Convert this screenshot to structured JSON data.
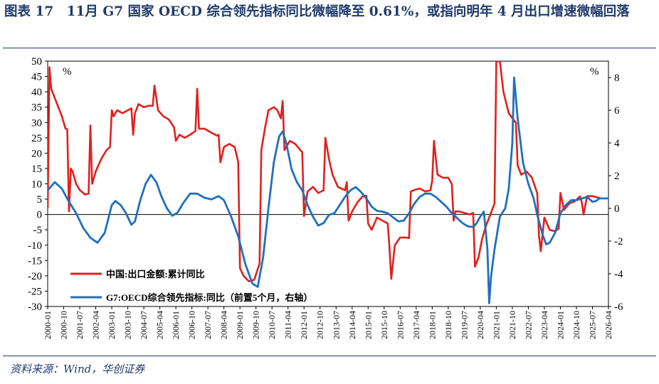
{
  "title": "图表 17　11月 G7 国家 OECD 综合领先指标同比微幅降至 0.61%，或指向明年 4 月出口增速微幅回落",
  "source": "资料来源：Wind，华创证券",
  "colors": {
    "series_china": "#e0201c",
    "series_g7": "#1f6fbf",
    "title": "#1f3b6b",
    "axis": "#000000"
  },
  "chart_data": {
    "type": "line",
    "title": "",
    "xlabel": "",
    "ylabel_left": "%",
    "ylabel_right": "%",
    "ylim_left": [
      -30,
      50
    ],
    "ylim_right": [
      -6,
      9
    ],
    "xlim": [
      "2000-01",
      "2026-04"
    ],
    "yticks_left": [
      "50",
      "45",
      "40",
      "35",
      "30",
      "25",
      "20",
      "15",
      "10",
      "5",
      "0",
      "-5",
      "-10",
      "-15",
      "-20",
      "-25",
      "-30"
    ],
    "yticks_right": [
      "8",
      "6",
      "4",
      "2",
      "0",
      "-2",
      "-4",
      "-6"
    ],
    "xticks": [
      "2000-01",
      "2000-10",
      "2001-07",
      "2002-04",
      "2003-01",
      "2003-10",
      "2004-07",
      "2005-04",
      "2006-01",
      "2006-10",
      "2007-07",
      "2008-04",
      "2009-01",
      "2009-10",
      "2010-07",
      "2011-04",
      "2012-01",
      "2012-10",
      "2013-07",
      "2014-04",
      "2015-01",
      "2015-10",
      "2016-07",
      "2017-04",
      "2018-01",
      "2018-10",
      "2019-07",
      "2020-04",
      "2021-01",
      "2021-10",
      "2022-07",
      "2023-04",
      "2024-01",
      "2024-10",
      "2025-07",
      "2026-04"
    ],
    "legend_position": "bottom-left",
    "series": [
      {
        "name": "中国:出口金额:累计同比",
        "axis": "left",
        "color": "#e0201c",
        "points": [
          [
            "2000-01",
            2
          ],
          [
            "2000-02",
            48
          ],
          [
            "2000-03",
            41
          ],
          [
            "2000-05",
            38
          ],
          [
            "2000-07",
            35
          ],
          [
            "2000-09",
            32
          ],
          [
            "2000-11",
            28
          ],
          [
            "2000-12",
            27.8
          ],
          [
            "2001-01",
            1
          ],
          [
            "2001-02",
            15
          ],
          [
            "2001-03",
            14
          ],
          [
            "2001-05",
            10
          ],
          [
            "2001-07",
            8
          ],
          [
            "2001-10",
            6.5
          ],
          [
            "2001-12",
            6.8
          ],
          [
            "2002-01",
            29
          ],
          [
            "2002-02",
            10
          ],
          [
            "2002-04",
            14
          ],
          [
            "2002-07",
            18
          ],
          [
            "2002-10",
            21
          ],
          [
            "2002-12",
            22
          ],
          [
            "2003-01",
            34
          ],
          [
            "2003-02",
            32
          ],
          [
            "2003-04",
            34
          ],
          [
            "2003-07",
            33
          ],
          [
            "2003-10",
            34
          ],
          [
            "2003-12",
            34.6
          ],
          [
            "2004-01",
            26
          ],
          [
            "2004-02",
            33
          ],
          [
            "2004-04",
            36
          ],
          [
            "2004-07",
            35
          ],
          [
            "2004-10",
            35.5
          ],
          [
            "2004-12",
            35.4
          ],
          [
            "2005-01",
            42
          ],
          [
            "2005-03",
            34
          ],
          [
            "2005-06",
            32
          ],
          [
            "2005-09",
            31
          ],
          [
            "2005-12",
            28.4
          ],
          [
            "2006-01",
            24
          ],
          [
            "2006-03",
            26
          ],
          [
            "2006-06",
            25
          ],
          [
            "2006-09",
            26
          ],
          [
            "2006-12",
            27.2
          ],
          [
            "2007-01",
            41
          ],
          [
            "2007-02",
            28
          ],
          [
            "2007-05",
            28
          ],
          [
            "2007-08",
            27
          ],
          [
            "2007-12",
            25.7
          ],
          [
            "2008-01",
            26
          ],
          [
            "2008-02",
            17
          ],
          [
            "2008-04",
            22
          ],
          [
            "2008-07",
            23
          ],
          [
            "2008-10",
            22
          ],
          [
            "2008-12",
            17.2
          ],
          [
            "2009-01",
            -17.5
          ],
          [
            "2009-03",
            -20
          ],
          [
            "2009-06",
            -21.8
          ],
          [
            "2009-09",
            -21.3
          ],
          [
            "2009-12",
            -16
          ],
          [
            "2010-01",
            21
          ],
          [
            "2010-03",
            28
          ],
          [
            "2010-05",
            34
          ],
          [
            "2010-08",
            35
          ],
          [
            "2010-10",
            34
          ],
          [
            "2010-12",
            31.3
          ],
          [
            "2011-01",
            37
          ],
          [
            "2011-02",
            21
          ],
          [
            "2011-05",
            24
          ],
          [
            "2011-08",
            23
          ],
          [
            "2011-12",
            20.3
          ],
          [
            "2012-01",
            -0.5
          ],
          [
            "2012-03",
            7.5
          ],
          [
            "2012-06",
            9
          ],
          [
            "2012-09",
            7
          ],
          [
            "2012-12",
            7.9
          ],
          [
            "2013-01",
            25
          ],
          [
            "2013-03",
            18
          ],
          [
            "2013-05",
            13
          ],
          [
            "2013-08",
            9
          ],
          [
            "2013-12",
            7.9
          ],
          [
            "2014-01",
            10.5
          ],
          [
            "2014-02",
            -2
          ],
          [
            "2014-04",
            1
          ],
          [
            "2014-07",
            4
          ],
          [
            "2014-10",
            6
          ],
          [
            "2014-12",
            6.1
          ],
          [
            "2015-01",
            -3
          ],
          [
            "2015-03",
            -5
          ],
          [
            "2015-06",
            -1
          ],
          [
            "2015-09",
            -2
          ],
          [
            "2015-12",
            -2.9
          ],
          [
            "2016-01",
            -11
          ],
          [
            "2016-02",
            -21
          ],
          [
            "2016-04",
            -10
          ],
          [
            "2016-07",
            -7.5
          ],
          [
            "2016-10",
            -7.5
          ],
          [
            "2016-12",
            -7.7
          ],
          [
            "2017-01",
            7.5
          ],
          [
            "2017-03",
            8
          ],
          [
            "2017-06",
            8.5
          ],
          [
            "2017-09",
            7.5
          ],
          [
            "2017-12",
            7.9
          ],
          [
            "2018-01",
            11
          ],
          [
            "2018-02",
            24
          ],
          [
            "2018-04",
            13
          ],
          [
            "2018-07",
            12
          ],
          [
            "2018-10",
            12
          ],
          [
            "2018-12",
            9.9
          ],
          [
            "2019-01",
            -2
          ],
          [
            "2019-02",
            1
          ],
          [
            "2019-04",
            1
          ],
          [
            "2019-07",
            0.5
          ],
          [
            "2019-10",
            0
          ],
          [
            "2019-12",
            0.5
          ],
          [
            "2020-01",
            -17
          ],
          [
            "2020-03",
            -14
          ],
          [
            "2020-05",
            -8
          ],
          [
            "2020-07",
            -4
          ],
          [
            "2020-09",
            -1
          ],
          [
            "2020-12",
            3.6
          ],
          [
            "2021-01",
            50
          ],
          [
            "2021-03",
            50
          ],
          [
            "2021-05",
            40
          ],
          [
            "2021-08",
            33
          ],
          [
            "2021-12",
            29.9
          ],
          [
            "2022-01",
            16
          ],
          [
            "2022-03",
            13
          ],
          [
            "2022-06",
            14
          ],
          [
            "2022-09",
            12
          ],
          [
            "2022-12",
            7
          ],
          [
            "2023-01",
            -7
          ],
          [
            "2023-02",
            -12
          ],
          [
            "2023-04",
            -1
          ],
          [
            "2023-07",
            -5
          ],
          [
            "2023-10",
            -5.5
          ],
          [
            "2023-12",
            -4.6
          ],
          [
            "2024-01",
            7
          ],
          [
            "2024-03",
            1.5
          ],
          [
            "2024-06",
            3.6
          ],
          [
            "2024-09",
            4.3
          ],
          [
            "2024-12",
            5.9
          ],
          [
            "2025-01",
            4
          ],
          [
            "2025-02",
            0
          ],
          [
            "2025-04",
            6
          ],
          [
            "2025-07",
            6
          ],
          [
            "2025-10",
            5.5
          ],
          [
            "2025-11",
            5.4
          ]
        ]
      },
      {
        "name": "G7:OECD综合领先指标:同比（前置5个月，右轴）",
        "axis": "right",
        "color": "#1f6fbf",
        "points": [
          [
            "2000-01",
            1.1
          ],
          [
            "2000-05",
            1.6
          ],
          [
            "2000-09",
            1.2
          ],
          [
            "2001-01",
            0.4
          ],
          [
            "2001-05",
            -0.3
          ],
          [
            "2001-09",
            -1.2
          ],
          [
            "2002-01",
            -1.8
          ],
          [
            "2002-05",
            -2.1
          ],
          [
            "2002-09",
            -1.5
          ],
          [
            "2003-01",
            0.2
          ],
          [
            "2003-03",
            0.45
          ],
          [
            "2003-06",
            0.2
          ],
          [
            "2003-09",
            -0.3
          ],
          [
            "2003-12",
            -1.0
          ],
          [
            "2004-02",
            -0.8
          ],
          [
            "2004-05",
            0.5
          ],
          [
            "2004-08",
            1.5
          ],
          [
            "2004-11",
            2.05
          ],
          [
            "2005-02",
            1.6
          ],
          [
            "2005-05",
            0.7
          ],
          [
            "2005-08",
            0
          ],
          [
            "2005-11",
            -0.45
          ],
          [
            "2006-02",
            -0.25
          ],
          [
            "2006-05",
            0.3
          ],
          [
            "2006-09",
            0.9
          ],
          [
            "2007-01",
            0.9
          ],
          [
            "2007-05",
            0.65
          ],
          [
            "2007-09",
            0.55
          ],
          [
            "2008-01",
            0.75
          ],
          [
            "2008-04",
            0.5
          ],
          [
            "2008-08",
            -0.5
          ],
          [
            "2008-12",
            -1.7
          ],
          [
            "2009-04",
            -3.4
          ],
          [
            "2009-08",
            -4.6
          ],
          [
            "2009-11",
            -4.8
          ],
          [
            "2010-02",
            -3
          ],
          [
            "2010-05",
            0
          ],
          [
            "2010-08",
            2.8
          ],
          [
            "2010-11",
            4.4
          ],
          [
            "2011-01",
            4.7
          ],
          [
            "2011-03",
            4.0
          ],
          [
            "2011-06",
            2.4
          ],
          [
            "2011-09",
            1.6
          ],
          [
            "2011-12",
            1.1
          ],
          [
            "2012-03",
            0.2
          ],
          [
            "2012-06",
            -0.5
          ],
          [
            "2012-09",
            -1.05
          ],
          [
            "2012-12",
            -0.9
          ],
          [
            "2013-03",
            -0.4
          ],
          [
            "2013-06",
            -0.3
          ],
          [
            "2013-09",
            0.2
          ],
          [
            "2013-12",
            0.7
          ],
          [
            "2014-03",
            1.1
          ],
          [
            "2014-06",
            1.3
          ],
          [
            "2014-09",
            1.0
          ],
          [
            "2014-12",
            0.6
          ],
          [
            "2015-03",
            0.1
          ],
          [
            "2015-06",
            -0.15
          ],
          [
            "2015-09",
            -0.2
          ],
          [
            "2015-12",
            -0.3
          ],
          [
            "2016-03",
            -0.55
          ],
          [
            "2016-06",
            -0.8
          ],
          [
            "2016-09",
            -0.75
          ],
          [
            "2016-12",
            -0.3
          ],
          [
            "2017-03",
            0.3
          ],
          [
            "2017-06",
            0.7
          ],
          [
            "2017-09",
            0.9
          ],
          [
            "2017-12",
            0.9
          ],
          [
            "2018-03",
            0.7
          ],
          [
            "2018-06",
            0.4
          ],
          [
            "2018-09",
            0.1
          ],
          [
            "2018-12",
            -0.3
          ],
          [
            "2019-03",
            -0.6
          ],
          [
            "2019-06",
            -0.9
          ],
          [
            "2019-09",
            -1.1
          ],
          [
            "2019-12",
            -1.15
          ],
          [
            "2020-02",
            -0.9
          ],
          [
            "2020-04",
            -0.5
          ],
          [
            "2020-06",
            -0.2
          ],
          [
            "2020-08",
            -2.5
          ],
          [
            "2020-09",
            -5.8
          ],
          [
            "2020-10",
            -4.2
          ],
          [
            "2020-12",
            -2.5
          ],
          [
            "2021-03",
            -0.5
          ],
          [
            "2021-06",
            0
          ],
          [
            "2021-08",
            1.2
          ],
          [
            "2021-10",
            4.0
          ],
          [
            "2021-11",
            8.0
          ],
          [
            "2022-01",
            5.5
          ],
          [
            "2022-04",
            2.8
          ],
          [
            "2022-07",
            1.5
          ],
          [
            "2022-10",
            0.6
          ],
          [
            "2022-12",
            -0.4
          ],
          [
            "2023-03",
            -1.6
          ],
          [
            "2023-05",
            -2.2
          ],
          [
            "2023-07",
            -2.1
          ],
          [
            "2023-10",
            -1.5
          ],
          [
            "2024-01",
            -0.3
          ],
          [
            "2024-04",
            0.2
          ],
          [
            "2024-07",
            0.5
          ],
          [
            "2024-10",
            0.5
          ],
          [
            "2025-01",
            0.6
          ],
          [
            "2025-04",
            0.7
          ],
          [
            "2025-07",
            0.4
          ],
          [
            "2025-09",
            0.45
          ],
          [
            "2025-11",
            0.61
          ],
          [
            "2026-04",
            0.61
          ]
        ]
      }
    ]
  }
}
